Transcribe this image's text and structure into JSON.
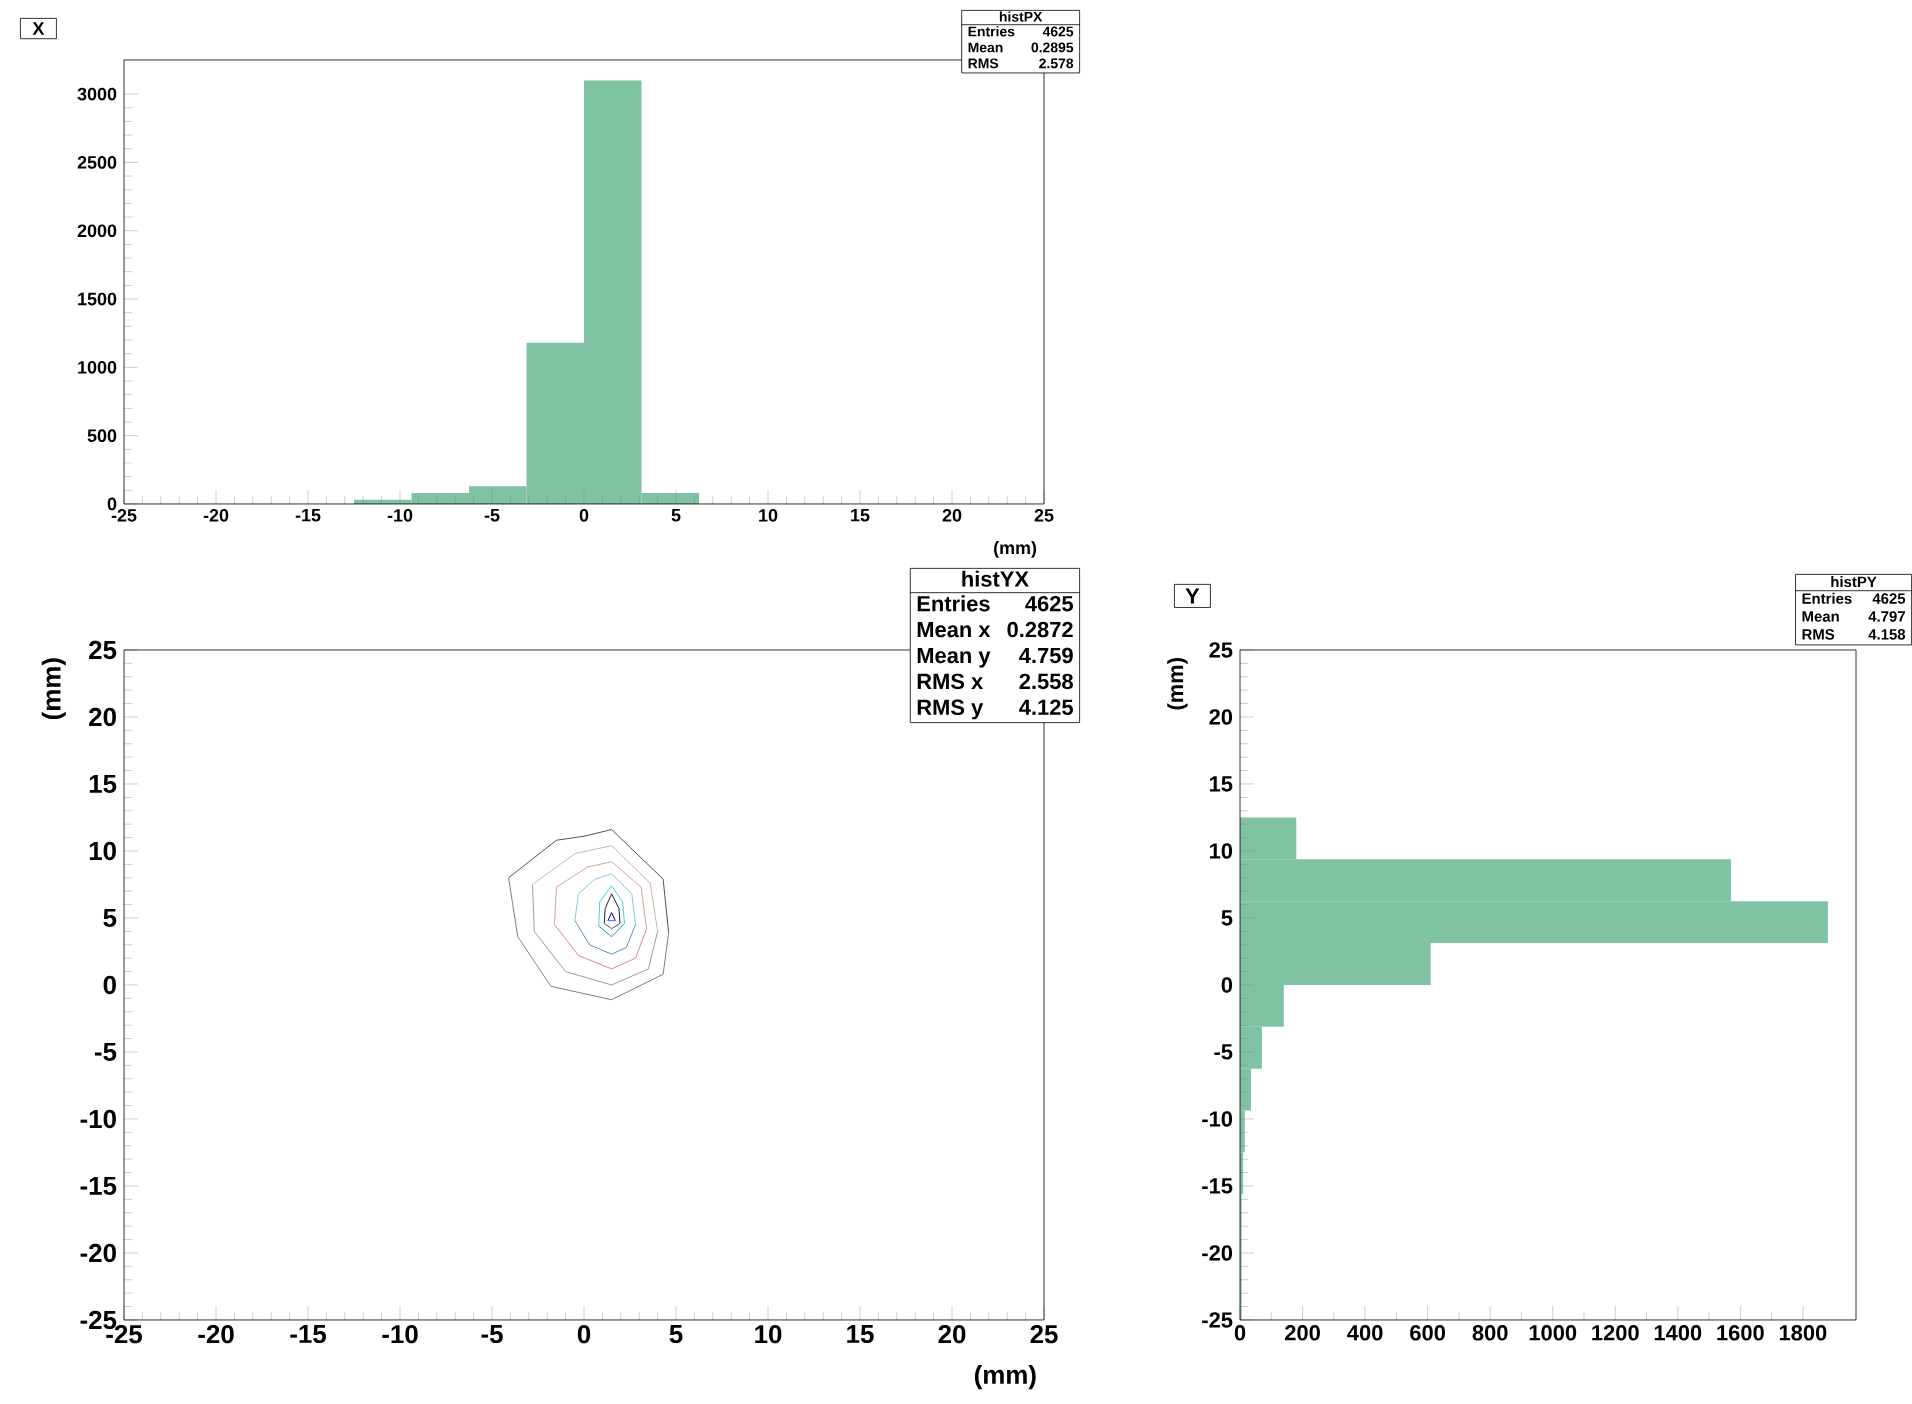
{
  "chart_data": [
    {
      "type": "histogram",
      "title": "X",
      "xlabel": "(mm)",
      "color": "#80c2a4",
      "bins": [
        -25,
        -21.875,
        -18.75,
        -15.625,
        -12.5,
        -9.375,
        -6.25,
        -3.125,
        0,
        3.125,
        6.25,
        9.375,
        12.5,
        15.625,
        18.75,
        21.875,
        25
      ],
      "values": [
        0,
        0,
        0,
        0,
        30,
        80,
        130,
        1180,
        3100,
        80,
        0,
        0,
        0,
        0,
        0,
        0
      ],
      "xlim": [
        -25,
        25
      ],
      "xticks": [
        -25,
        -20,
        -15,
        -10,
        -5,
        0,
        5,
        10,
        15,
        20,
        25
      ],
      "ylim": [
        0,
        3250
      ],
      "yticks": [
        0,
        500,
        1000,
        1500,
        2000,
        2500,
        3000
      ],
      "annotations": [
        "histPX",
        "Entries",
        "4625",
        "Mean",
        "0.2895",
        "RMS",
        "2.578"
      ]
    },
    {
      "type": "line",
      "xlabel": "(mm)",
      "ylabel": "(mm)",
      "series": [
        {
          "color": "#505050",
          "x": [
            -4.1,
            -1.5,
            0,
            1.5,
            4.3,
            4.6
          ],
          "values": [
            8.0,
            10.8,
            11.1,
            11.6,
            7.9,
            3.9
          ]
        },
        {
          "color": "#808080",
          "x": [
            -4.1,
            -3.6,
            -1.8,
            1.5,
            4.3,
            4.6
          ],
          "values": [
            8.0,
            3.6,
            -0.1,
            -1.1,
            0.8,
            3.9
          ]
        },
        {
          "color": "#c8b8a8",
          "x": [
            -2.8,
            -0.5,
            1.5,
            3.6,
            4.0
          ],
          "values": [
            7.5,
            9.8,
            10.4,
            7.6,
            4.0
          ]
        },
        {
          "color": "#a89888",
          "x": [
            -2.8,
            -2.7,
            -1.0,
            1.5,
            3.5,
            4.0
          ],
          "values": [
            7.5,
            4.0,
            1.0,
            0.0,
            1.2,
            4.0
          ]
        },
        {
          "color": "#d9a0a0",
          "x": [
            -1.6,
            -1.5,
            0.2,
            1.5,
            3.1,
            3.4
          ],
          "values": [
            4.5,
            7.3,
            8.8,
            9.2,
            7.3,
            4.2
          ]
        },
        {
          "color": "#e080a0",
          "x": [
            -1.6,
            -0.3,
            1.5,
            2.8,
            3.4
          ],
          "values": [
            4.5,
            2.2,
            1.2,
            2.0,
            4.2
          ]
        },
        {
          "color": "#88c8d8",
          "x": [
            -0.5,
            -0.3,
            0.6,
            1.5,
            2.6,
            2.8
          ],
          "values": [
            4.8,
            6.8,
            7.9,
            8.3,
            6.8,
            4.5
          ]
        },
        {
          "color": "#6090c0",
          "x": [
            -0.5,
            0.3,
            1.5,
            2.3,
            2.8
          ],
          "values": [
            4.8,
            3.0,
            2.3,
            2.8,
            4.5
          ]
        },
        {
          "color": "#40d0e0",
          "x": [
            0.8,
            0.85,
            1.5,
            2.1,
            2.2
          ],
          "values": [
            4.4,
            6.2,
            7.4,
            6.2,
            4.6
          ]
        },
        {
          "color": "#20a0b0",
          "x": [
            0.8,
            1.5,
            2.2
          ],
          "values": [
            4.4,
            3.6,
            4.6
          ]
        },
        {
          "color": "#202040",
          "x": [
            1.1,
            1.15,
            1.5,
            1.9,
            1.95
          ],
          "values": [
            4.6,
            5.7,
            6.8,
            5.7,
            4.6
          ]
        },
        {
          "color": "#604080",
          "x": [
            1.1,
            1.5,
            1.95
          ],
          "values": [
            4.6,
            4.2,
            4.6
          ]
        },
        {
          "color": "#000080",
          "x": [
            1.3,
            1.5,
            1.7
          ],
          "values": [
            4.8,
            5.4,
            4.8
          ]
        },
        {
          "color": "#4060ff",
          "x": [
            1.3,
            1.7
          ],
          "values": [
            4.8,
            4.8
          ]
        }
      ],
      "xlim": [
        -25,
        25
      ],
      "xticks": [
        -25,
        -20,
        -15,
        -10,
        -5,
        0,
        5,
        10,
        15,
        20,
        25
      ],
      "ylim": [
        -25,
        25
      ],
      "yticks": [
        -25,
        -20,
        -15,
        -10,
        -5,
        0,
        5,
        10,
        15,
        20,
        25
      ],
      "annotations": [
        "histYX",
        "Entries",
        "4625",
        "Mean x",
        "0.2872",
        "Mean y",
        "4.759",
        "RMS x",
        "2.558",
        "RMS y",
        "4.125"
      ]
    },
    {
      "type": "histogram",
      "title": "Y",
      "ylabel": "(mm)",
      "orientation": "horizontal",
      "color": "#80c2a4",
      "bins": [
        -25,
        -21.875,
        -18.75,
        -15.625,
        -12.5,
        -9.375,
        -6.25,
        -3.125,
        0,
        3.125,
        6.25,
        9.375,
        12.5,
        15.625,
        18.75,
        21.875,
        25
      ],
      "values": [
        5,
        5,
        5,
        10,
        15,
        35,
        70,
        140,
        610,
        1880,
        1570,
        180,
        0,
        0,
        0,
        0
      ],
      "xlim": [
        0,
        1970
      ],
      "xticks": [
        0,
        200,
        400,
        600,
        800,
        1000,
        1200,
        1400,
        1600,
        1800
      ],
      "ylim": [
        -25,
        25
      ],
      "yticks": [
        -25,
        -20,
        -15,
        -10,
        -5,
        0,
        5,
        10,
        15,
        20,
        25
      ],
      "annotations": [
        "histPY",
        "Entries",
        "4625",
        "Mean",
        "4.797",
        "RMS",
        "4.158"
      ]
    }
  ]
}
